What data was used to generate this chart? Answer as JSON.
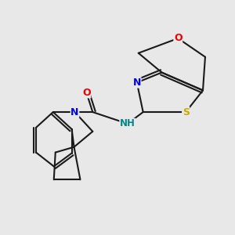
{
  "background_color": "#e8e8e8",
  "bond_color": "#1a1a1a",
  "atom_colors": {
    "N": "#0000ee",
    "O": "#ee0000",
    "S": "#ccaa00",
    "NH": "#008888",
    "C": "#1a1a1a"
  },
  "figsize": [
    3.0,
    3.0
  ],
  "dpi": 100
}
